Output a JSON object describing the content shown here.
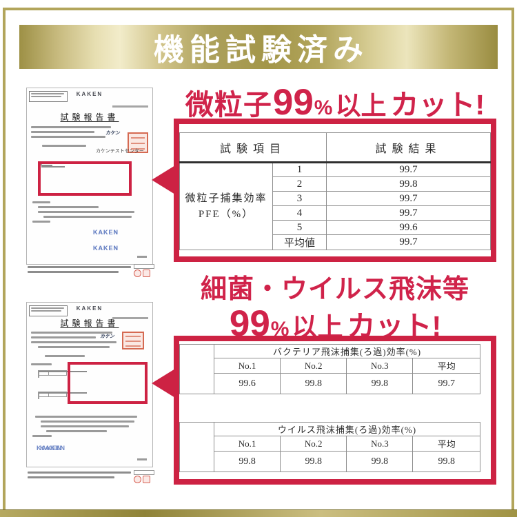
{
  "banner": {
    "title": "機能試験済み"
  },
  "pfe": {
    "heading": {
      "t1": "微粒子",
      "t2": "99",
      "t3": "%",
      "t4": "以上",
      "t5": "カット!"
    },
    "table": {
      "col_item": "試験項目",
      "col_result": "試験結果",
      "label_line1": "微粒子捕集効率",
      "label_line2": "PFE（%）",
      "rows": [
        {
          "no": "1",
          "val": "99.7"
        },
        {
          "no": "2",
          "val": "99.8"
        },
        {
          "no": "3",
          "val": "99.7"
        },
        {
          "no": "4",
          "val": "99.7"
        },
        {
          "no": "5",
          "val": "99.6"
        },
        {
          "no": "平均値",
          "val": "99.7"
        }
      ]
    }
  },
  "droplet": {
    "line1": "細菌・ウイルス飛沫等",
    "line2": {
      "t1": "99",
      "t2": "%",
      "t3": "以上",
      "t4": "カット!"
    },
    "bacteria": {
      "title": "バクテリア飛沫捕集(ろ過)効率(%)",
      "cols": [
        "No.1",
        "No.2",
        "No.3",
        "平均"
      ],
      "vals": [
        "99.6",
        "99.8",
        "99.8",
        "99.7"
      ]
    },
    "virus": {
      "title": "ウイルス飛沫捕集(ろ過)効率(%)",
      "cols": [
        "No.1",
        "No.2",
        "No.3",
        "平均"
      ],
      "vals": [
        "99.8",
        "99.8",
        "99.8",
        "99.8"
      ]
    }
  },
  "docs": {
    "logo": "KAKEN",
    "title": "試験報告書",
    "brand": "カケン",
    "org": "カケンテストセンター",
    "watermark": "KAKEN"
  },
  "chart_data": [
    {
      "type": "table",
      "title": "微粒子捕集効率 PFE（%）",
      "categories": [
        "1",
        "2",
        "3",
        "4",
        "5",
        "平均値"
      ],
      "values": [
        99.7,
        99.8,
        99.7,
        99.7,
        99.6,
        99.7
      ]
    },
    {
      "type": "table",
      "title": "バクテリア飛沫捕集(ろ過)効率(%)",
      "categories": [
        "No.1",
        "No.2",
        "No.3",
        "平均"
      ],
      "values": [
        99.6,
        99.8,
        99.8,
        99.7
      ]
    },
    {
      "type": "table",
      "title": "ウイルス飛沫捕集(ろ過)効率(%)",
      "categories": [
        "No.1",
        "No.2",
        "No.3",
        "平均"
      ],
      "values": [
        99.8,
        99.8,
        99.8,
        99.8
      ]
    }
  ]
}
